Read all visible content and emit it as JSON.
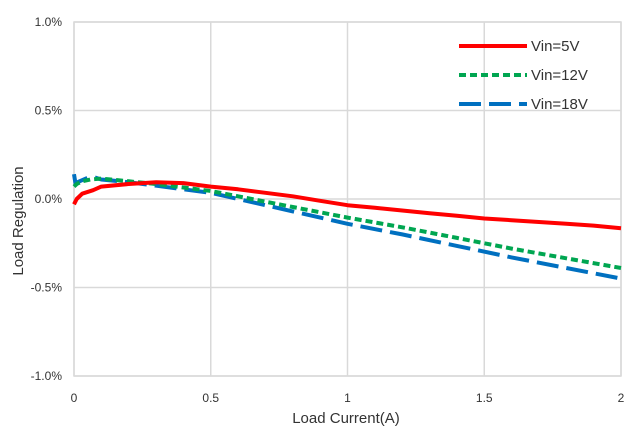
{
  "chart_data": {
    "type": "line",
    "xlabel": "Load Current(A)",
    "ylabel": "Load Regulation",
    "xlim": [
      0,
      2
    ],
    "ylim": [
      -1.0,
      1.0
    ],
    "x_ticks": [
      {
        "value": 0,
        "label": "0"
      },
      {
        "value": 0.5,
        "label": "0.5"
      },
      {
        "value": 1,
        "label": "1"
      },
      {
        "value": 1.5,
        "label": "1.5"
      },
      {
        "value": 2,
        "label": "2"
      }
    ],
    "y_ticks": [
      {
        "value": 1.0,
        "label": "1.0%"
      },
      {
        "value": 0.5,
        "label": "0.5%"
      },
      {
        "value": 0.0,
        "label": "0.0%"
      },
      {
        "value": -0.5,
        "label": "-0.5%"
      },
      {
        "value": -1.0,
        "label": "-1.0%"
      }
    ],
    "grid": true,
    "legend_position": "top-right",
    "series": [
      {
        "name": "Vin=5V",
        "color": "#ff0000",
        "dash": "solid",
        "points": [
          [
            0,
            -0.03
          ],
          [
            0.01,
            0.0
          ],
          [
            0.03,
            0.03
          ],
          [
            0.07,
            0.05
          ],
          [
            0.1,
            0.07
          ],
          [
            0.2,
            0.085
          ],
          [
            0.3,
            0.095
          ],
          [
            0.4,
            0.09
          ],
          [
            0.5,
            0.07
          ],
          [
            0.6,
            0.055
          ],
          [
            0.7,
            0.035
          ],
          [
            0.8,
            0.015
          ],
          [
            0.9,
            -0.01
          ],
          [
            1.0,
            -0.035
          ],
          [
            1.1,
            -0.05
          ],
          [
            1.2,
            -0.065
          ],
          [
            1.3,
            -0.08
          ],
          [
            1.4,
            -0.095
          ],
          [
            1.5,
            -0.11
          ],
          [
            1.6,
            -0.12
          ],
          [
            1.7,
            -0.13
          ],
          [
            1.8,
            -0.14
          ],
          [
            1.9,
            -0.15
          ],
          [
            2.0,
            -0.165
          ]
        ]
      },
      {
        "name": "Vin=12V",
        "color": "#00a651",
        "dash": "short",
        "points": [
          [
            0,
            0.07
          ],
          [
            0.01,
            0.085
          ],
          [
            0.03,
            0.1
          ],
          [
            0.06,
            0.11
          ],
          [
            0.1,
            0.115
          ],
          [
            0.2,
            0.1
          ],
          [
            0.3,
            0.085
          ],
          [
            0.4,
            0.065
          ],
          [
            0.5,
            0.045
          ],
          [
            0.6,
            0.015
          ],
          [
            0.7,
            -0.015
          ],
          [
            0.8,
            -0.045
          ],
          [
            0.9,
            -0.075
          ],
          [
            1.0,
            -0.105
          ],
          [
            1.2,
            -0.16
          ],
          [
            1.4,
            -0.22
          ],
          [
            1.6,
            -0.28
          ],
          [
            1.8,
            -0.335
          ],
          [
            2.0,
            -0.39
          ]
        ]
      },
      {
        "name": "Vin=18V",
        "color": "#0070c0",
        "dash": "long",
        "points": [
          [
            0,
            0.14
          ],
          [
            0.005,
            0.09
          ],
          [
            0.02,
            0.1
          ],
          [
            0.05,
            0.12
          ],
          [
            0.08,
            0.12
          ],
          [
            0.1,
            0.11
          ],
          [
            0.2,
            0.095
          ],
          [
            0.3,
            0.075
          ],
          [
            0.4,
            0.055
          ],
          [
            0.5,
            0.035
          ],
          [
            0.6,
            0.0
          ],
          [
            0.7,
            -0.035
          ],
          [
            0.8,
            -0.07
          ],
          [
            0.9,
            -0.105
          ],
          [
            1.0,
            -0.14
          ],
          [
            1.2,
            -0.2
          ],
          [
            1.4,
            -0.265
          ],
          [
            1.6,
            -0.33
          ],
          [
            1.8,
            -0.39
          ],
          [
            2.0,
            -0.45
          ]
        ]
      }
    ]
  }
}
